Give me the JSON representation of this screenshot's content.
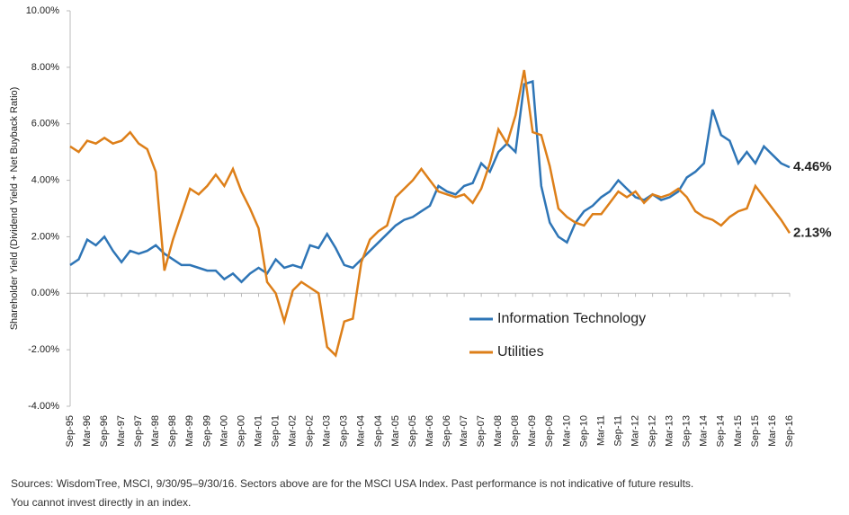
{
  "chart_data": {
    "type": "line",
    "ylabel": "Shareholder Yield (Dividend Yield + Net Buyback Ratio)",
    "categories": [
      "Sep-95",
      null,
      "Mar-96",
      null,
      "Sep-96",
      null,
      "Mar-97",
      null,
      "Sep-97",
      null,
      "Mar-98",
      null,
      "Sep-98",
      null,
      "Mar-99",
      null,
      "Sep-99",
      null,
      "Mar-00",
      null,
      "Sep-00",
      null,
      "Mar-01",
      null,
      "Sep-01",
      null,
      "Mar-02",
      null,
      "Sep-02",
      null,
      "Mar-03",
      null,
      "Sep-03",
      null,
      "Mar-04",
      null,
      "Sep-04",
      null,
      "Mar-05",
      null,
      "Sep-05",
      null,
      "Mar-06",
      null,
      "Sep-06",
      null,
      "Mar-07",
      null,
      "Sep-07",
      null,
      "Mar-08",
      null,
      "Sep-08",
      null,
      "Mar-09",
      null,
      "Sep-09",
      null,
      "Mar-10",
      null,
      "Sep-10",
      null,
      "Mar-11",
      null,
      "Sep-11",
      null,
      "Mar-12",
      null,
      "Sep-12",
      null,
      "Mar-13",
      null,
      "Sep-13",
      null,
      "Mar-14",
      null,
      "Sep-14",
      null,
      "Mar-15",
      null,
      "Sep-15",
      null,
      "Mar-16",
      null,
      "Sep-16"
    ],
    "series": [
      {
        "name": "Information Technology",
        "color": "#2e75b6",
        "end_label": "4.46%",
        "values": [
          1.0,
          1.2,
          1.9,
          1.7,
          2.0,
          1.5,
          1.1,
          1.5,
          1.4,
          1.5,
          1.7,
          1.4,
          1.2,
          1.0,
          1.0,
          0.9,
          0.8,
          0.8,
          0.5,
          0.7,
          0.4,
          0.7,
          0.9,
          0.7,
          1.2,
          0.9,
          1.0,
          0.9,
          1.7,
          1.6,
          2.1,
          1.6,
          1.0,
          0.9,
          1.2,
          1.5,
          1.8,
          2.1,
          2.4,
          2.6,
          2.7,
          2.9,
          3.1,
          3.8,
          3.6,
          3.5,
          3.8,
          3.9,
          4.6,
          4.3,
          5.0,
          5.3,
          5.0,
          7.4,
          7.5,
          3.8,
          2.5,
          2.0,
          1.8,
          2.5,
          2.9,
          3.1,
          3.4,
          3.6,
          4.0,
          3.7,
          3.4,
          3.3,
          3.5,
          3.3,
          3.4,
          3.6,
          4.1,
          4.3,
          4.6,
          6.5,
          5.6,
          5.4,
          4.6,
          5.0,
          4.6,
          5.2,
          4.9,
          4.6,
          4.46
        ]
      },
      {
        "name": "Utilities",
        "color": "#dd7f19",
        "end_label": "2.13%",
        "values": [
          5.2,
          5.0,
          5.4,
          5.3,
          5.5,
          5.3,
          5.4,
          5.7,
          5.3,
          5.1,
          4.3,
          0.8,
          1.9,
          2.8,
          3.7,
          3.5,
          3.8,
          4.2,
          3.8,
          4.4,
          3.6,
          3.0,
          2.3,
          0.4,
          0.0,
          -1.0,
          0.1,
          0.4,
          0.2,
          0.0,
          -1.9,
          -2.2,
          -1.0,
          -0.9,
          1.1,
          1.9,
          2.2,
          2.4,
          3.4,
          3.7,
          4.0,
          4.4,
          4.0,
          3.6,
          3.5,
          3.4,
          3.5,
          3.2,
          3.7,
          4.6,
          5.8,
          5.3,
          6.3,
          7.9,
          5.7,
          5.6,
          4.5,
          3.0,
          2.7,
          2.5,
          2.4,
          2.8,
          2.8,
          3.2,
          3.6,
          3.4,
          3.6,
          3.2,
          3.5,
          3.4,
          3.5,
          3.7,
          3.4,
          2.9,
          2.7,
          2.6,
          2.4,
          2.7,
          2.9,
          3.0,
          3.8,
          3.4,
          3.0,
          2.6,
          2.13
        ]
      }
    ],
    "ylim": [
      -4,
      10
    ],
    "yticks": [
      {
        "value": -4,
        "label": "-4.00%"
      },
      {
        "value": -2,
        "label": "-2.00%"
      },
      {
        "value": 0,
        "label": "0.00%"
      },
      {
        "value": 2,
        "label": "2.00%"
      },
      {
        "value": 4,
        "label": "4.00%"
      },
      {
        "value": 6,
        "label": "6.00%"
      },
      {
        "value": 8,
        "label": "8.00%"
      },
      {
        "value": 10,
        "label": "10.00%"
      }
    ],
    "grid": false,
    "source": [
      "Sources: WisdomTree, MSCI, 9/30/95–9/30/16. Sectors above are for the MSCI USA Index. Past performance is not indicative of future results.",
      "You cannot invest directly in an index."
    ]
  }
}
